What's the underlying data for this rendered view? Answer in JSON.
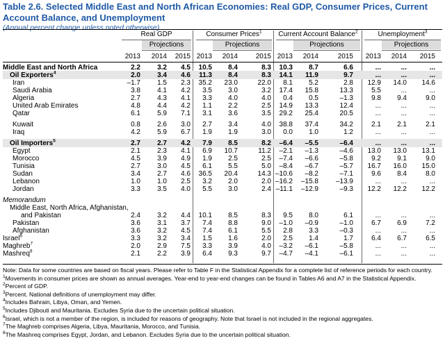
{
  "title": "Table 2.6. Selected Middle East and North African Economies: Real GDP, Consumer Prices, Current Account Balance, and Unemployment",
  "subtitle": "(Annual percent change unless noted otherwise)",
  "groups": [
    {
      "label": "Real GDP",
      "sup": ""
    },
    {
      "label": "Consumer Prices",
      "sup": "1"
    },
    {
      "label": "Current Account Balance",
      "sup": "2"
    },
    {
      "label": "Unemployment",
      "sup": "3"
    }
  ],
  "projections_label": "Projections",
  "years": [
    "2013",
    "2014",
    "2015"
  ],
  "rows": [
    {
      "label": "Middle East and North Africa",
      "sup": "",
      "style": "bold",
      "v": [
        "2.2",
        "3.2",
        "4.5",
        "10.5",
        "8.4",
        "8.3",
        "10.3",
        "8.7",
        "6.6",
        "...",
        "...",
        "..."
      ]
    },
    {
      "label": "Oil Exporters",
      "sup": "4",
      "style": "bold ind1",
      "v": [
        "2.0",
        "3.4",
        "4.6",
        "11.3",
        "8.4",
        "8.3",
        "14.1",
        "11.9",
        "9.7",
        "...",
        "...",
        "..."
      ]
    },
    {
      "label": "Iran",
      "sup": "",
      "style": "ind2",
      "v": [
        "–1.7",
        "1.5",
        "2.3",
        "35.2",
        "23.0",
        "22.0",
        "8.1",
        "5.2",
        "2.8",
        "12.9",
        "14.0",
        "14.6"
      ]
    },
    {
      "label": "Saudi Arabia",
      "sup": "",
      "style": "ind2",
      "v": [
        "3.8",
        "4.1",
        "4.2",
        "3.5",
        "3.0",
        "3.2",
        "17.4",
        "15.8",
        "13.3",
        "5.5",
        "...",
        "..."
      ]
    },
    {
      "label": "Algeria",
      "sup": "",
      "style": "ind2",
      "v": [
        "2.7",
        "4.3",
        "4.1",
        "3.3",
        "4.0",
        "4.0",
        "0.4",
        "0.5",
        "–1.3",
        "9.8",
        "9.4",
        "9.0"
      ]
    },
    {
      "label": "United Arab Emirates",
      "sup": "",
      "style": "ind2",
      "v": [
        "4.8",
        "4.4",
        "4.2",
        "1.1",
        "2.2",
        "2.5",
        "14.9",
        "13.3",
        "12.4",
        "...",
        "...",
        "..."
      ]
    },
    {
      "label": "Qatar",
      "sup": "",
      "style": "ind2",
      "v": [
        "6.1",
        "5.9",
        "7.1",
        "3.1",
        "3.6",
        "3.5",
        "29.2",
        "25.4",
        "20.5",
        "...",
        "...",
        "..."
      ]
    },
    {
      "label": "Kuwait",
      "sup": "",
      "style": "ind2",
      "v": [
        "0.8",
        "2.6",
        "3.0",
        "2.7",
        "3.4",
        "4.0",
        "38.8",
        "37.4",
        "34.2",
        "2.1",
        "2.1",
        "2.1"
      ]
    },
    {
      "label": "Iraq",
      "sup": "",
      "style": "ind2",
      "v": [
        "4.2",
        "5.9",
        "6.7",
        "1.9",
        "1.9",
        "3.0",
        "0.0",
        "1.0",
        "1.2",
        "...",
        "...",
        "..."
      ]
    },
    {
      "label": "Oil Importers",
      "sup": "5",
      "style": "bold ind1",
      "v": [
        "2.7",
        "2.7",
        "4.2",
        "7.9",
        "8.5",
        "8.2",
        "–6.4",
        "–5.5",
        "–6.4",
        "...",
        "...",
        "..."
      ]
    },
    {
      "label": "Egypt",
      "sup": "",
      "style": "ind2",
      "v": [
        "2.1",
        "2.3",
        "4.1",
        "6.9",
        "10.7",
        "11.2",
        "–2.1",
        "–1.3",
        "–4.6",
        "13.0",
        "13.0",
        "13.1"
      ]
    },
    {
      "label": "Morocco",
      "sup": "",
      "style": "ind2",
      "v": [
        "4.5",
        "3.9",
        "4.9",
        "1.9",
        "2.5",
        "2.5",
        "–7.4",
        "–6.6",
        "–5.8",
        "9.2",
        "9.1",
        "9.0"
      ]
    },
    {
      "label": "Tunisia",
      "sup": "",
      "style": "ind2",
      "v": [
        "2.7",
        "3.0",
        "4.5",
        "6.1",
        "5.5",
        "5.0",
        "–8.4",
        "–6.7",
        "–5.7",
        "16.7",
        "16.0",
        "15.0"
      ]
    },
    {
      "label": "Sudan",
      "sup": "",
      "style": "ind2",
      "v": [
        "3.4",
        "2.7",
        "4.6",
        "36.5",
        "20.4",
        "14.3",
        "–10.6",
        "–8.2",
        "–7.1",
        "9.6",
        "8.4",
        "8.0"
      ]
    },
    {
      "label": "Lebanon",
      "sup": "",
      "style": "ind2",
      "v": [
        "1.0",
        "1.0",
        "2.5",
        "3.2",
        "2.0",
        "2.0",
        "–16.2",
        "–15.8",
        "–13.9",
        "...",
        "...",
        "..."
      ]
    },
    {
      "label": "Jordan",
      "sup": "",
      "style": "ind2",
      "v": [
        "3.3",
        "3.5",
        "4.0",
        "5.5",
        "3.0",
        "2.4",
        "–11.1",
        "–12.9",
        "–9.3",
        "12.2",
        "12.2",
        "12.2"
      ]
    },
    {
      "label": "Memorandum",
      "sup": "",
      "style": "it",
      "v": [
        "",
        "",
        "",
        "",
        "",
        "",
        "",
        "",
        "",
        "",
        "",
        ""
      ]
    },
    {
      "label": "Middle East, North Africa, Afghanistan,",
      "sup": "",
      "style": "ind1",
      "v": [
        "",
        "",
        "",
        "",
        "",
        "",
        "",
        "",
        "",
        "",
        "",
        ""
      ]
    },
    {
      "label": "and Pakistan",
      "sup": "",
      "style": "ind3",
      "v": [
        "2.4",
        "3.2",
        "4.4",
        "10.1",
        "8.5",
        "8.3",
        "9.5",
        "8.0",
        "6.1",
        "...",
        "...",
        "..."
      ]
    },
    {
      "label": "Pakistan",
      "sup": "",
      "style": "ind2",
      "v": [
        "3.6",
        "3.1",
        "3.7",
        "7.4",
        "8.8",
        "9.0",
        "–1.0",
        "–0.9",
        "–1.0",
        "6.7",
        "6.9",
        "7.2"
      ]
    },
    {
      "label": "Afghanistan",
      "sup": "",
      "style": "ind2",
      "v": [
        "3.6",
        "3.2",
        "4.5",
        "7.4",
        "6.1",
        "5.5",
        "2.8",
        "3.3",
        "–0.3",
        "...",
        "...",
        "..."
      ]
    },
    {
      "label": "Israel",
      "sup": "6",
      "style": "",
      "v": [
        "3.3",
        "3.2",
        "3.4",
        "1.5",
        "1.6",
        "2.0",
        "2.5",
        "1.4",
        "1.7",
        "6.4",
        "6.7",
        "6.5"
      ]
    },
    {
      "label": "Maghreb",
      "sup": "7",
      "style": "",
      "v": [
        "2.0",
        "2.9",
        "7.5",
        "3.3",
        "3.9",
        "4.0",
        "–3.2",
        "–6.1",
        "–5.8",
        "...",
        "...",
        "..."
      ]
    },
    {
      "label": "Mashreq",
      "sup": "8",
      "style": "",
      "v": [
        "2.1",
        "2.2",
        "3.9",
        "6.4",
        "9.3",
        "9.7",
        "–4.7",
        "–4.1",
        "–6.1",
        "...",
        "...",
        "..."
      ]
    }
  ],
  "notes": [
    {
      "sup": "",
      "text": "Note: Data for some countries are based on fiscal years. Please refer to Table F in the Statistical Appendix for a complete list of reference periods for each country."
    },
    {
      "sup": "1",
      "text": "Movements in consumer prices are shown as annual averages. Year-end to year-end changes can be found in Tables A6 and A7 in the Statistical Appendix."
    },
    {
      "sup": "2",
      "text": "Percent of GDP."
    },
    {
      "sup": "3",
      "text": "Percent. National definitions of unemployment may differ."
    },
    {
      "sup": "4",
      "text": "Includes Bahrain, Libya, Oman, and Yemen."
    },
    {
      "sup": "5",
      "text": "Includes Djibouti and Mauritania. Excludes Syria due to the uncertain political situation."
    },
    {
      "sup": "6",
      "text": "Israel, which is not a member of the region, is included for reasons of geography. Note that Israel is not included in the regional aggregates."
    },
    {
      "sup": "7",
      "text": "The Maghreb comprises Algeria, Libya, Mauritania, Morocco, and Tunisia."
    },
    {
      "sup": "8",
      "text": "The Mashreq comprises Egypt, Jordan, and Lebanon. Excludes Syria due to the uncertain political situation."
    }
  ],
  "colors": {
    "title": "#1f5aa6",
    "projection_shade": "#dcdcdc",
    "group_shade": "#e6e6e6"
  }
}
